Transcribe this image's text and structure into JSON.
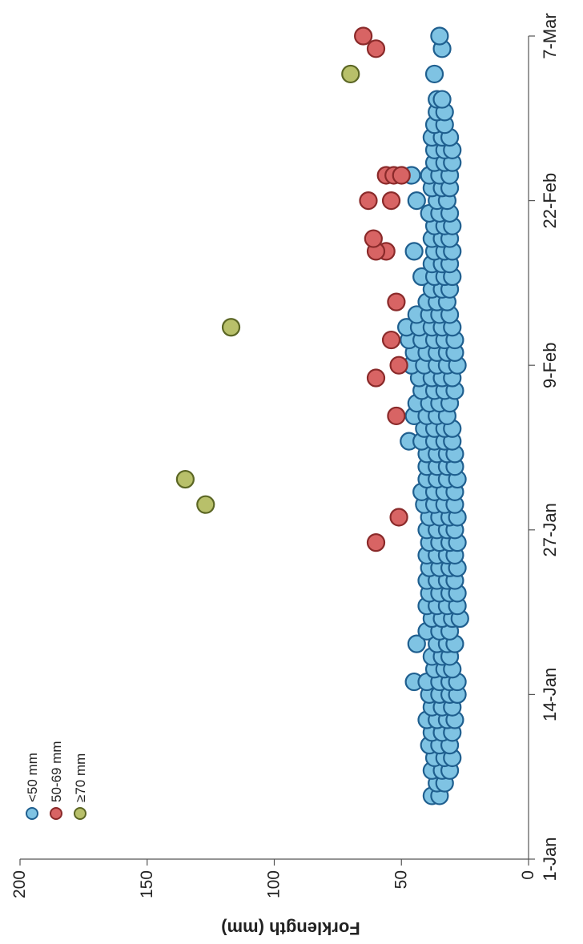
{
  "chart_data": {
    "type": "scatter",
    "title": "",
    "xlabel": "",
    "ylabel": "Forklength (mm)",
    "x_range": [
      "1-Jan",
      "7-Mar"
    ],
    "ylim": [
      0,
      200
    ],
    "y_ticks": [
      0,
      50,
      100,
      150,
      200
    ],
    "x_tick_labels": [
      "1-Jan",
      "14-Jan",
      "27-Jan",
      "9-Feb",
      "22-Feb",
      "7-Mar"
    ],
    "grid": false,
    "legend_position": "top-left",
    "orientation": "rotated-90-counterclockwise",
    "series": [
      {
        "name": "<50 mm",
        "color": "#7fc3e3",
        "points": [
          [
            "6-Jan",
            38
          ],
          [
            "6-Jan",
            35
          ],
          [
            "7-Jan",
            36
          ],
          [
            "7-Jan",
            33
          ],
          [
            "8-Jan",
            38
          ],
          [
            "8-Jan",
            34
          ],
          [
            "8-Jan",
            31
          ],
          [
            "9-Jan",
            37
          ],
          [
            "9-Jan",
            33
          ],
          [
            "9-Jan",
            30
          ],
          [
            "10-Jan",
            39
          ],
          [
            "10-Jan",
            35
          ],
          [
            "10-Jan",
            31
          ],
          [
            "11-Jan",
            38
          ],
          [
            "11-Jan",
            34
          ],
          [
            "11-Jan",
            30
          ],
          [
            "12-Jan",
            40
          ],
          [
            "12-Jan",
            36
          ],
          [
            "12-Jan",
            32
          ],
          [
            "12-Jan",
            29
          ],
          [
            "13-Jan",
            38
          ],
          [
            "13-Jan",
            34
          ],
          [
            "13-Jan",
            30
          ],
          [
            "14-Jan",
            39
          ],
          [
            "14-Jan",
            35
          ],
          [
            "14-Jan",
            31
          ],
          [
            "14-Jan",
            28
          ],
          [
            "15-Jan",
            45
          ],
          [
            "15-Jan",
            40
          ],
          [
            "15-Jan",
            35
          ],
          [
            "15-Jan",
            31
          ],
          [
            "15-Jan",
            28
          ],
          [
            "16-Jan",
            37
          ],
          [
            "16-Jan",
            33
          ],
          [
            "16-Jan",
            30
          ],
          [
            "17-Jan",
            38
          ],
          [
            "17-Jan",
            34
          ],
          [
            "17-Jan",
            31
          ],
          [
            "18-Jan",
            44
          ],
          [
            "18-Jan",
            36
          ],
          [
            "18-Jan",
            32
          ],
          [
            "18-Jan",
            29
          ],
          [
            "19-Jan",
            40
          ],
          [
            "19-Jan",
            35
          ],
          [
            "19-Jan",
            31
          ],
          [
            "20-Jan",
            38
          ],
          [
            "20-Jan",
            34
          ],
          [
            "20-Jan",
            30
          ],
          [
            "20-Jan",
            27
          ],
          [
            "21-Jan",
            40
          ],
          [
            "21-Jan",
            36
          ],
          [
            "21-Jan",
            32
          ],
          [
            "21-Jan",
            28
          ],
          [
            "22-Jan",
            39
          ],
          [
            "22-Jan",
            35
          ],
          [
            "22-Jan",
            31
          ],
          [
            "22-Jan",
            28
          ],
          [
            "23-Jan",
            40
          ],
          [
            "23-Jan",
            36
          ],
          [
            "23-Jan",
            32
          ],
          [
            "23-Jan",
            29
          ],
          [
            "24-Jan",
            39
          ],
          [
            "24-Jan",
            35
          ],
          [
            "24-Jan",
            31
          ],
          [
            "24-Jan",
            28
          ],
          [
            "25-Jan",
            40
          ],
          [
            "25-Jan",
            36
          ],
          [
            "25-Jan",
            32
          ],
          [
            "25-Jan",
            29
          ],
          [
            "26-Jan",
            39
          ],
          [
            "26-Jan",
            35
          ],
          [
            "26-Jan",
            31
          ],
          [
            "26-Jan",
            28
          ],
          [
            "27-Jan",
            40
          ],
          [
            "27-Jan",
            36
          ],
          [
            "27-Jan",
            32
          ],
          [
            "27-Jan",
            29
          ],
          [
            "28-Jan",
            39
          ],
          [
            "28-Jan",
            35
          ],
          [
            "28-Jan",
            31
          ],
          [
            "28-Jan",
            28
          ],
          [
            "29-Jan",
            41
          ],
          [
            "29-Jan",
            37
          ],
          [
            "29-Jan",
            33
          ],
          [
            "29-Jan",
            29
          ],
          [
            "30-Jan",
            42
          ],
          [
            "30-Jan",
            37
          ],
          [
            "30-Jan",
            33
          ],
          [
            "30-Jan",
            29
          ],
          [
            "31-Jan",
            40
          ],
          [
            "31-Jan",
            36
          ],
          [
            "31-Jan",
            32
          ],
          [
            "31-Jan",
            28
          ],
          [
            "1-Feb",
            40
          ],
          [
            "1-Feb",
            36
          ],
          [
            "1-Feb",
            32
          ],
          [
            "1-Feb",
            29
          ],
          [
            "2-Feb",
            40
          ],
          [
            "2-Feb",
            36
          ],
          [
            "2-Feb",
            32
          ],
          [
            "2-Feb",
            29
          ],
          [
            "3-Feb",
            47
          ],
          [
            "3-Feb",
            42
          ],
          [
            "3-Feb",
            37
          ],
          [
            "3-Feb",
            33
          ],
          [
            "3-Feb",
            30
          ],
          [
            "4-Feb",
            41
          ],
          [
            "4-Feb",
            37
          ],
          [
            "4-Feb",
            33
          ],
          [
            "4-Feb",
            30
          ],
          [
            "5-Feb",
            45
          ],
          [
            "5-Feb",
            40
          ],
          [
            "5-Feb",
            36
          ],
          [
            "5-Feb",
            32
          ],
          [
            "6-Feb",
            44
          ],
          [
            "6-Feb",
            39
          ],
          [
            "6-Feb",
            35
          ],
          [
            "6-Feb",
            31
          ],
          [
            "7-Feb",
            42
          ],
          [
            "7-Feb",
            37
          ],
          [
            "7-Feb",
            33
          ],
          [
            "7-Feb",
            29
          ],
          [
            "8-Feb",
            43
          ],
          [
            "8-Feb",
            38
          ],
          [
            "8-Feb",
            34
          ],
          [
            "8-Feb",
            30
          ],
          [
            "9-Feb",
            46
          ],
          [
            "9-Feb",
            41
          ],
          [
            "9-Feb",
            36
          ],
          [
            "9-Feb",
            32
          ],
          [
            "9-Feb",
            28
          ],
          [
            "10-Feb",
            45
          ],
          [
            "10-Feb",
            40
          ],
          [
            "10-Feb",
            36
          ],
          [
            "10-Feb",
            32
          ],
          [
            "10-Feb",
            29
          ],
          [
            "11-Feb",
            47
          ],
          [
            "11-Feb",
            42
          ],
          [
            "11-Feb",
            37
          ],
          [
            "11-Feb",
            33
          ],
          [
            "11-Feb",
            29
          ],
          [
            "12-Feb",
            48
          ],
          [
            "12-Feb",
            43
          ],
          [
            "12-Feb",
            38
          ],
          [
            "12-Feb",
            34
          ],
          [
            "12-Feb",
            30
          ],
          [
            "13-Feb",
            44
          ],
          [
            "13-Feb",
            39
          ],
          [
            "13-Feb",
            35
          ],
          [
            "13-Feb",
            31
          ],
          [
            "14-Feb",
            40
          ],
          [
            "14-Feb",
            36
          ],
          [
            "14-Feb",
            32
          ],
          [
            "15-Feb",
            38
          ],
          [
            "15-Feb",
            34
          ],
          [
            "15-Feb",
            31
          ],
          [
            "16-Feb",
            42
          ],
          [
            "16-Feb",
            37
          ],
          [
            "16-Feb",
            33
          ],
          [
            "16-Feb",
            30
          ],
          [
            "17-Feb",
            38
          ],
          [
            "17-Feb",
            34
          ],
          [
            "17-Feb",
            31
          ],
          [
            "18-Feb",
            45
          ],
          [
            "18-Feb",
            37
          ],
          [
            "18-Feb",
            33
          ],
          [
            "18-Feb",
            30
          ],
          [
            "19-Feb",
            38
          ],
          [
            "19-Feb",
            34
          ],
          [
            "19-Feb",
            31
          ],
          [
            "20-Feb",
            37
          ],
          [
            "20-Feb",
            33
          ],
          [
            "20-Feb",
            30
          ],
          [
            "21-Feb",
            39
          ],
          [
            "21-Feb",
            35
          ],
          [
            "21-Feb",
            31
          ],
          [
            "22-Feb",
            44
          ],
          [
            "22-Feb",
            36
          ],
          [
            "22-Feb",
            32
          ],
          [
            "23-Feb",
            38
          ],
          [
            "23-Feb",
            34
          ],
          [
            "23-Feb",
            31
          ],
          [
            "24-Feb",
            46
          ],
          [
            "24-Feb",
            39
          ],
          [
            "24-Feb",
            35
          ],
          [
            "24-Feb",
            31
          ],
          [
            "25-Feb",
            37
          ],
          [
            "25-Feb",
            33
          ],
          [
            "25-Feb",
            30
          ],
          [
            "26-Feb",
            37
          ],
          [
            "26-Feb",
            33
          ],
          [
            "26-Feb",
            30
          ],
          [
            "27-Feb",
            38
          ],
          [
            "27-Feb",
            34
          ],
          [
            "27-Feb",
            31
          ],
          [
            "28-Feb",
            37
          ],
          [
            "28-Feb",
            33
          ],
          [
            "1-Mar",
            36
          ],
          [
            "1-Mar",
            33
          ],
          [
            "2-Mar",
            36
          ],
          [
            "2-Mar",
            34
          ],
          [
            "4-Mar",
            37
          ],
          [
            "6-Mar",
            34
          ],
          [
            "7-Mar",
            35
          ]
        ]
      },
      {
        "name": "50-69 mm",
        "color": "#d86464",
        "points": [
          [
            "26-Jan",
            60
          ],
          [
            "28-Jan",
            51
          ],
          [
            "5-Feb",
            52
          ],
          [
            "8-Feb",
            60
          ],
          [
            "9-Feb",
            51
          ],
          [
            "11-Feb",
            54
          ],
          [
            "14-Feb",
            52
          ],
          [
            "18-Feb",
            56
          ],
          [
            "18-Feb",
            60
          ],
          [
            "19-Feb",
            61
          ],
          [
            "22-Feb",
            63
          ],
          [
            "22-Feb",
            54
          ],
          [
            "24-Feb",
            56
          ],
          [
            "24-Feb",
            53
          ],
          [
            "24-Feb",
            50
          ],
          [
            "6-Mar",
            60
          ],
          [
            "7-Mar",
            65
          ]
        ]
      },
      {
        "name": "≥70 mm",
        "color": "#b8c06a",
        "points": [
          [
            "29-Jan",
            127
          ],
          [
            "31-Jan",
            135
          ],
          [
            "12-Feb",
            117
          ],
          [
            "4-Mar",
            70
          ]
        ]
      }
    ]
  }
}
